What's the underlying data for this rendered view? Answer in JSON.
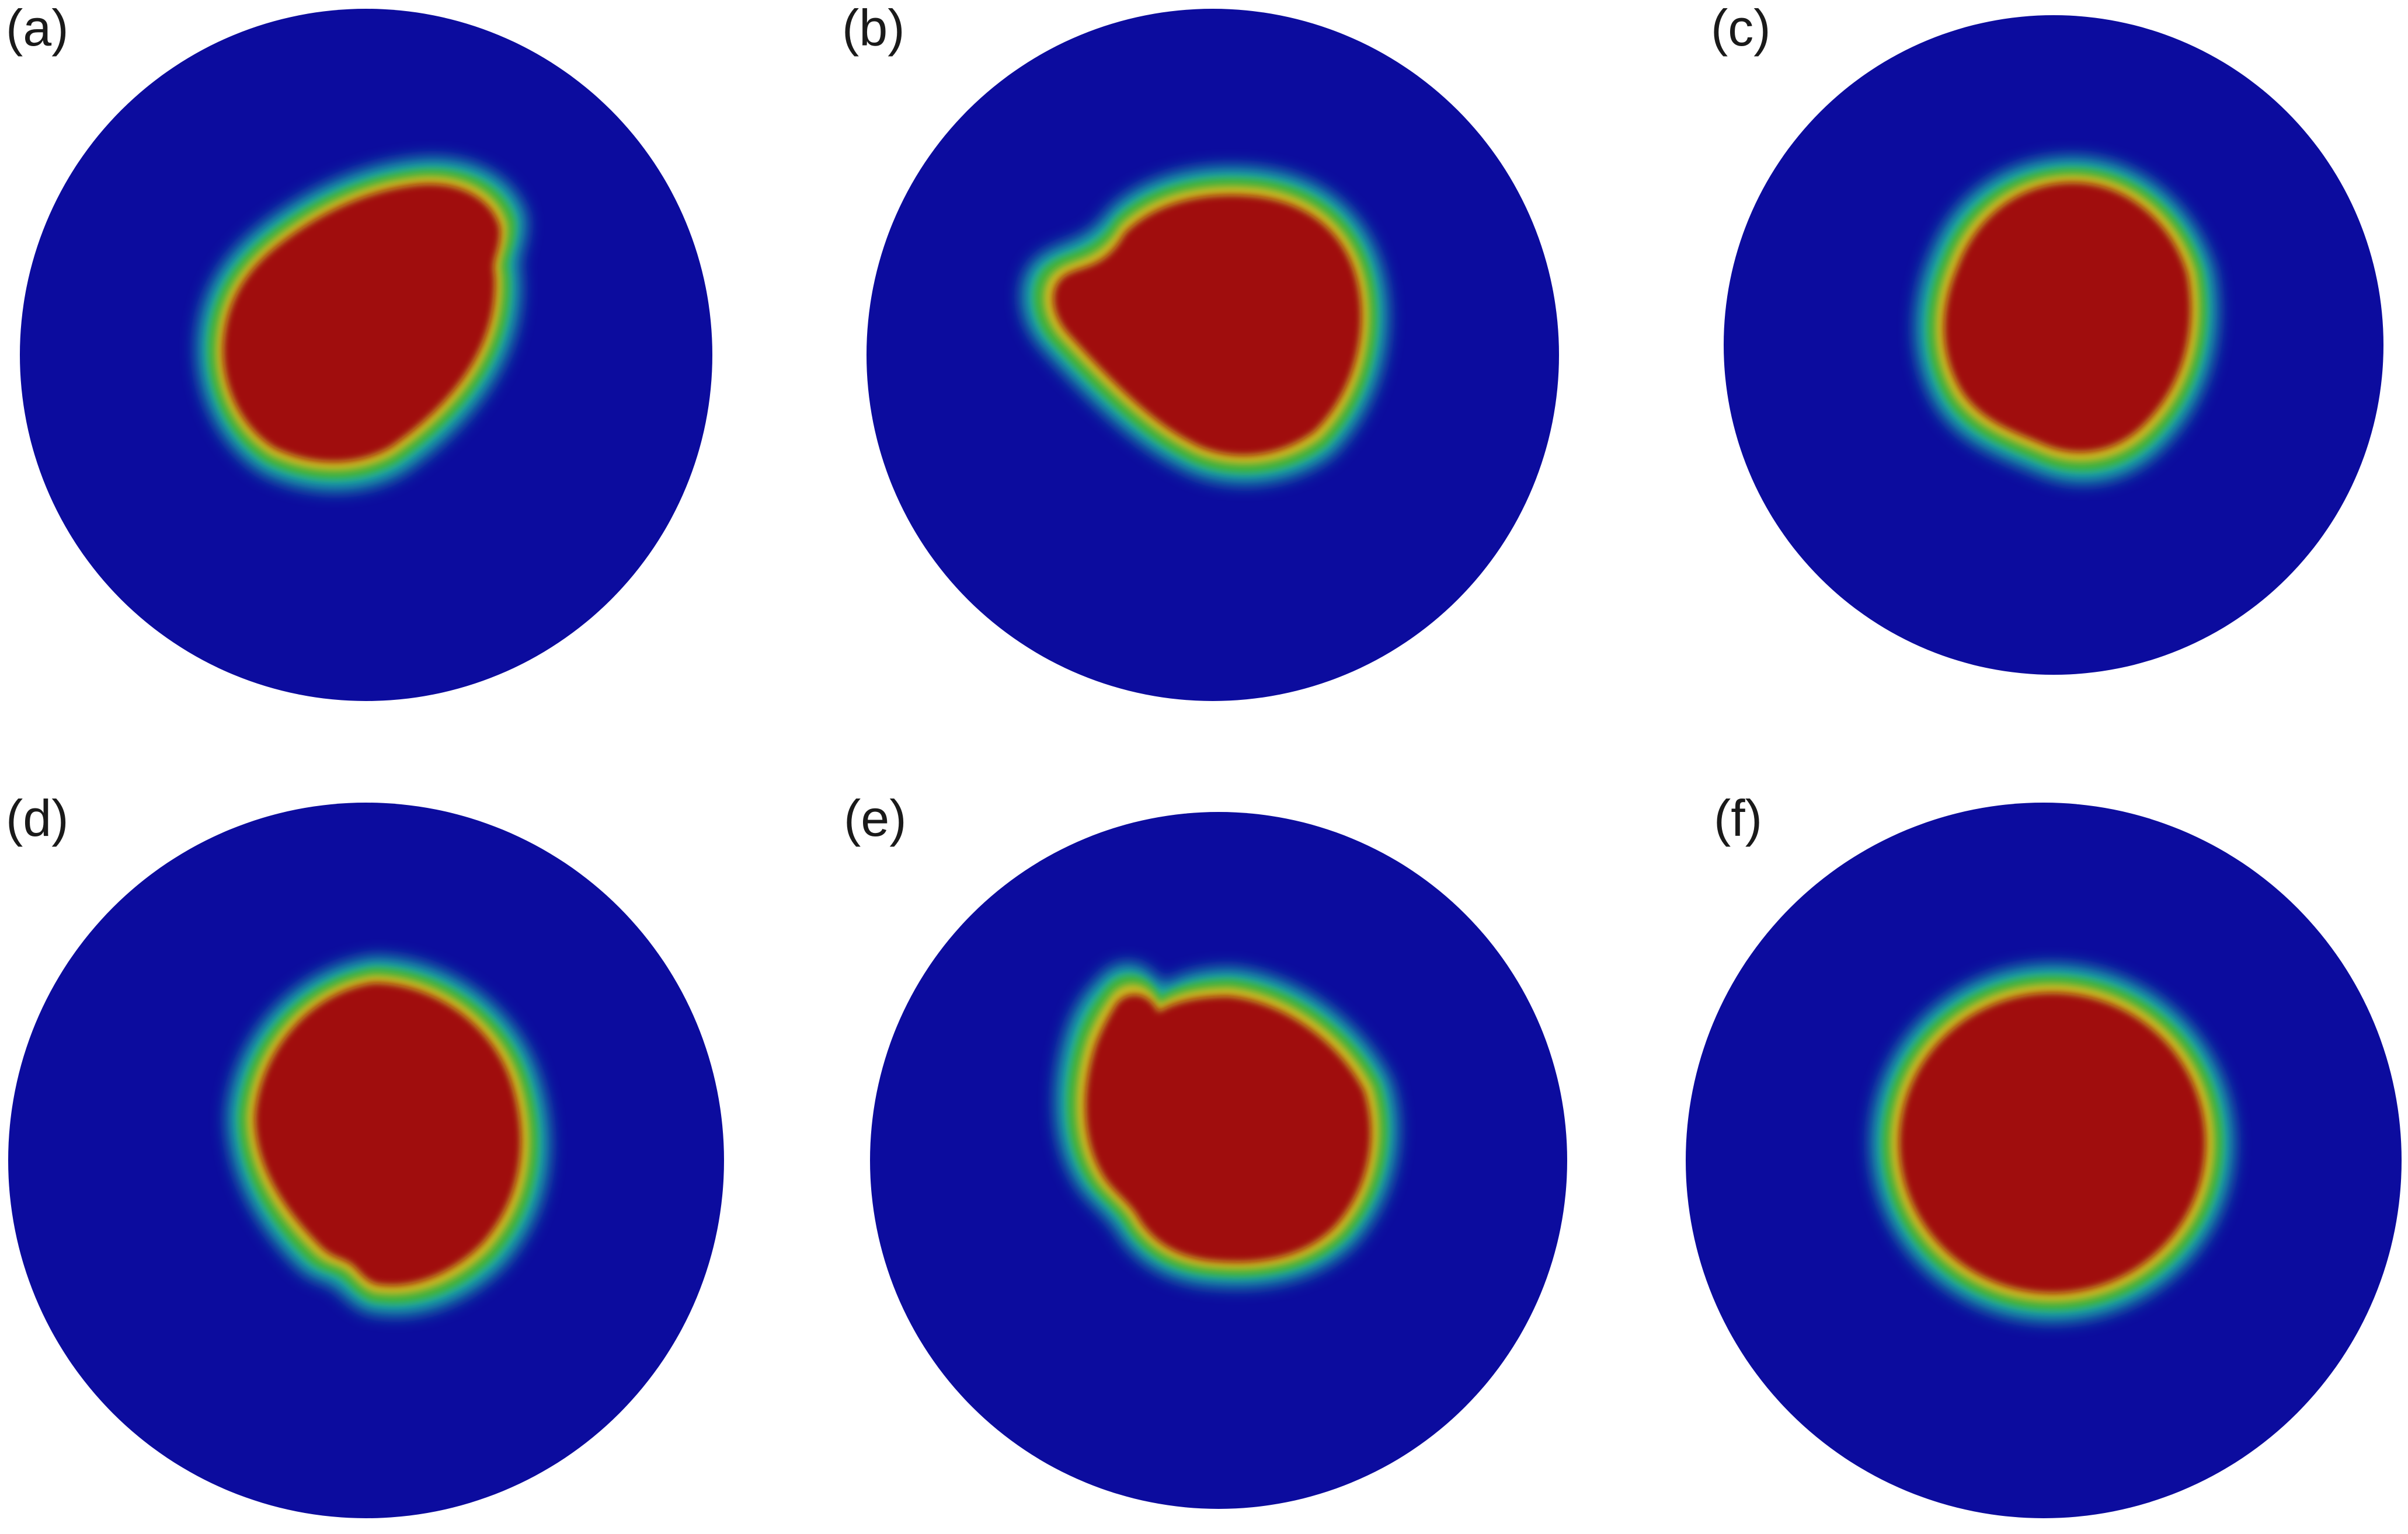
{
  "colors": {
    "background": "#ffffff",
    "domain": "#0c0c9e",
    "interior": "#a01010",
    "interface_outer": "#1fb8a6",
    "interface_mid": "#3fb03a",
    "interface_inner": "#c8b820"
  },
  "panels": [
    {
      "label": "(a)"
    },
    {
      "label": "(b)"
    },
    {
      "label": "(c)"
    },
    {
      "label": "(d)"
    },
    {
      "label": "(e)"
    },
    {
      "label": "(f)"
    }
  ]
}
